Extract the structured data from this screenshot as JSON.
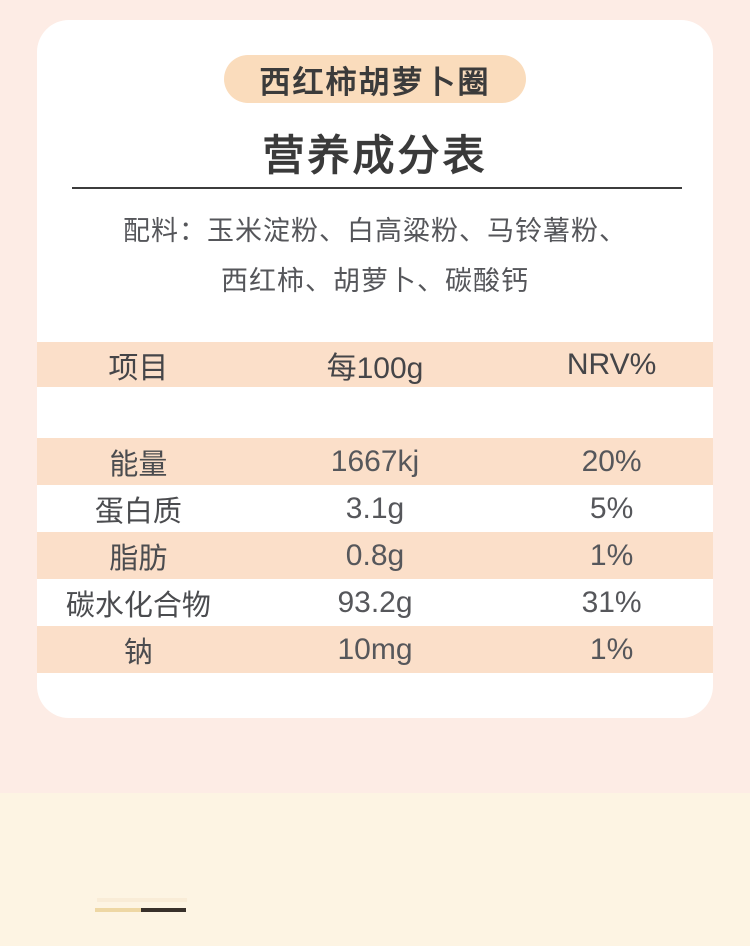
{
  "page": {
    "background_color": "#fdece5",
    "bottom_strip_color": "#fdf4e3"
  },
  "card": {
    "background_color": "#ffffff",
    "badge": {
      "label": "西红柿胡萝卜圈",
      "background_color": "#fadcbc"
    },
    "title": "营养成分表",
    "ingredients": {
      "line1": "配料：玉米淀粉、白高粱粉、马铃薯粉、",
      "line2": "西红柿、胡萝卜、碳酸钙"
    }
  },
  "table": {
    "stripe_color": "#fbdfc9",
    "headers": [
      "项目",
      "每100g",
      "NRV%"
    ],
    "rows": [
      {
        "name": "能量",
        "per100g": "1667kj",
        "nrv": "20%"
      },
      {
        "name": "蛋白质",
        "per100g": "3.1g",
        "nrv": "5%"
      },
      {
        "name": "脂肪",
        "per100g": "0.8g",
        "nrv": "1%"
      },
      {
        "name": "碳水化合物",
        "per100g": "93.2g",
        "nrv": "31%"
      },
      {
        "name": "钠",
        "per100g": "10mg",
        "nrv": "1%"
      }
    ]
  },
  "decor": {
    "light_line_color": "#eed7a4",
    "dark_line_color": "#38302a"
  }
}
